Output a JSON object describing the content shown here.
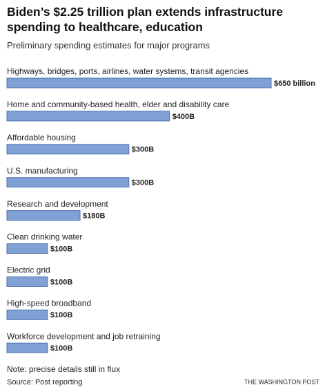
{
  "chart_data": {
    "type": "bar",
    "orientation": "horizontal",
    "title": "Biden’s $2.25 trillion plan extends infrastructure spending to healthcare, education",
    "subtitle": "Preliminary spending estimates for major programs",
    "categories": [
      "Highways, bridges, ports, airlines, water systems, transit agencies",
      "Home and community-based health, elder and disability care",
      "Affordable housing",
      "U.S. manufacturing",
      "Research and development",
      "Clean drinking water",
      "Electric grid",
      "High-speed broadband",
      "Workforce development and job retraining"
    ],
    "values": [
      650,
      400,
      300,
      300,
      180,
      100,
      100,
      100,
      100
    ],
    "value_labels": [
      "$650 billion",
      "$400B",
      "$300B",
      "$300B",
      "$180B",
      "$100B",
      "$100B",
      "$100B",
      "$100B"
    ],
    "color": "#7fa1d6",
    "note": "Note: precise details still in flux",
    "source": "Source: Post reporting",
    "credit": "THE WASHINGTON POST"
  }
}
